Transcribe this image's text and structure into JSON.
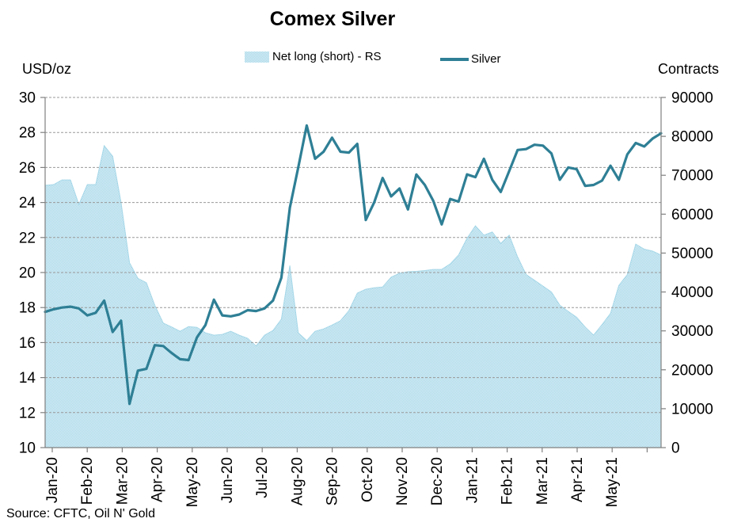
{
  "source_note": "Source: CFTC, Oil N' Gold",
  "colors": {
    "line": "#2e7f95",
    "area_dark": "#a6d7e8",
    "area_light": "#ddf0f7",
    "grid": "#999999",
    "axis": "#808080",
    "text": "#000000"
  },
  "chart_data": {
    "type": "combo",
    "title": "Comex Silver",
    "x_unit": "weekly, Jan-2020 to early Jun-2021",
    "x_tick_labels": [
      "Jan-20",
      "Feb-20",
      "Mar-20",
      "Apr-20",
      "May-20",
      "Jun-20",
      "Jul-20",
      "Aug-20",
      "Sep-20",
      "Oct-20",
      "Nov-20",
      "Dec-20",
      "Jan-21",
      "Feb-21",
      "Mar-21",
      "Apr-21",
      "May-21"
    ],
    "extra_unlabeled_end_tick": true,
    "left_axis": {
      "label": "USD/oz",
      "min": 10,
      "max": 30,
      "step": 2
    },
    "right_axis": {
      "label": "Contracts",
      "min": 0,
      "max": 90000,
      "step": 10000
    },
    "grid": "horizontal-dashed",
    "legend_position": "top-center",
    "series": [
      {
        "name": "Net long (short) - RS",
        "type": "area",
        "axis": "right",
        "values": [
          67400,
          67600,
          68800,
          68800,
          62500,
          67600,
          67600,
          77600,
          74900,
          63000,
          47500,
          43500,
          42400,
          36600,
          32000,
          31000,
          29900,
          31100,
          30900,
          29500,
          28900,
          29100,
          29900,
          28900,
          28100,
          26100,
          28900,
          30100,
          33000,
          46800,
          29500,
          27500,
          29900,
          30500,
          31500,
          32600,
          35200,
          39700,
          40700,
          41100,
          41300,
          43800,
          44800,
          45200,
          45300,
          45500,
          45800,
          45800,
          47200,
          49500,
          53800,
          57000,
          54600,
          55400,
          52500,
          54600,
          49000,
          44500,
          43000,
          41500,
          40000,
          36600,
          35000,
          33500,
          31000,
          28900,
          31600,
          34500,
          41700,
          44500,
          52300,
          51000,
          50500,
          49500
        ]
      },
      {
        "name": "Silver",
        "type": "line",
        "axis": "left",
        "values": [
          17.75,
          17.9,
          18.0,
          18.05,
          17.95,
          17.55,
          17.7,
          18.4,
          16.6,
          17.25,
          12.5,
          14.4,
          14.5,
          15.85,
          15.8,
          15.4,
          15.05,
          15.0,
          16.3,
          17.0,
          18.45,
          17.55,
          17.5,
          17.6,
          17.85,
          17.8,
          17.95,
          18.4,
          19.7,
          23.7,
          26.0,
          28.4,
          26.5,
          26.9,
          27.7,
          26.9,
          26.85,
          27.35,
          23.0,
          24.0,
          25.4,
          24.35,
          24.8,
          23.6,
          25.6,
          25.0,
          24.1,
          22.75,
          24.2,
          24.05,
          25.6,
          25.45,
          26.5,
          25.3,
          24.6,
          25.8,
          27.0,
          27.05,
          27.3,
          27.25,
          26.8,
          25.3,
          26.0,
          25.9,
          24.95,
          25.0,
          25.25,
          26.1,
          25.3,
          26.75,
          27.4,
          27.2,
          27.65,
          27.95
        ]
      }
    ]
  }
}
